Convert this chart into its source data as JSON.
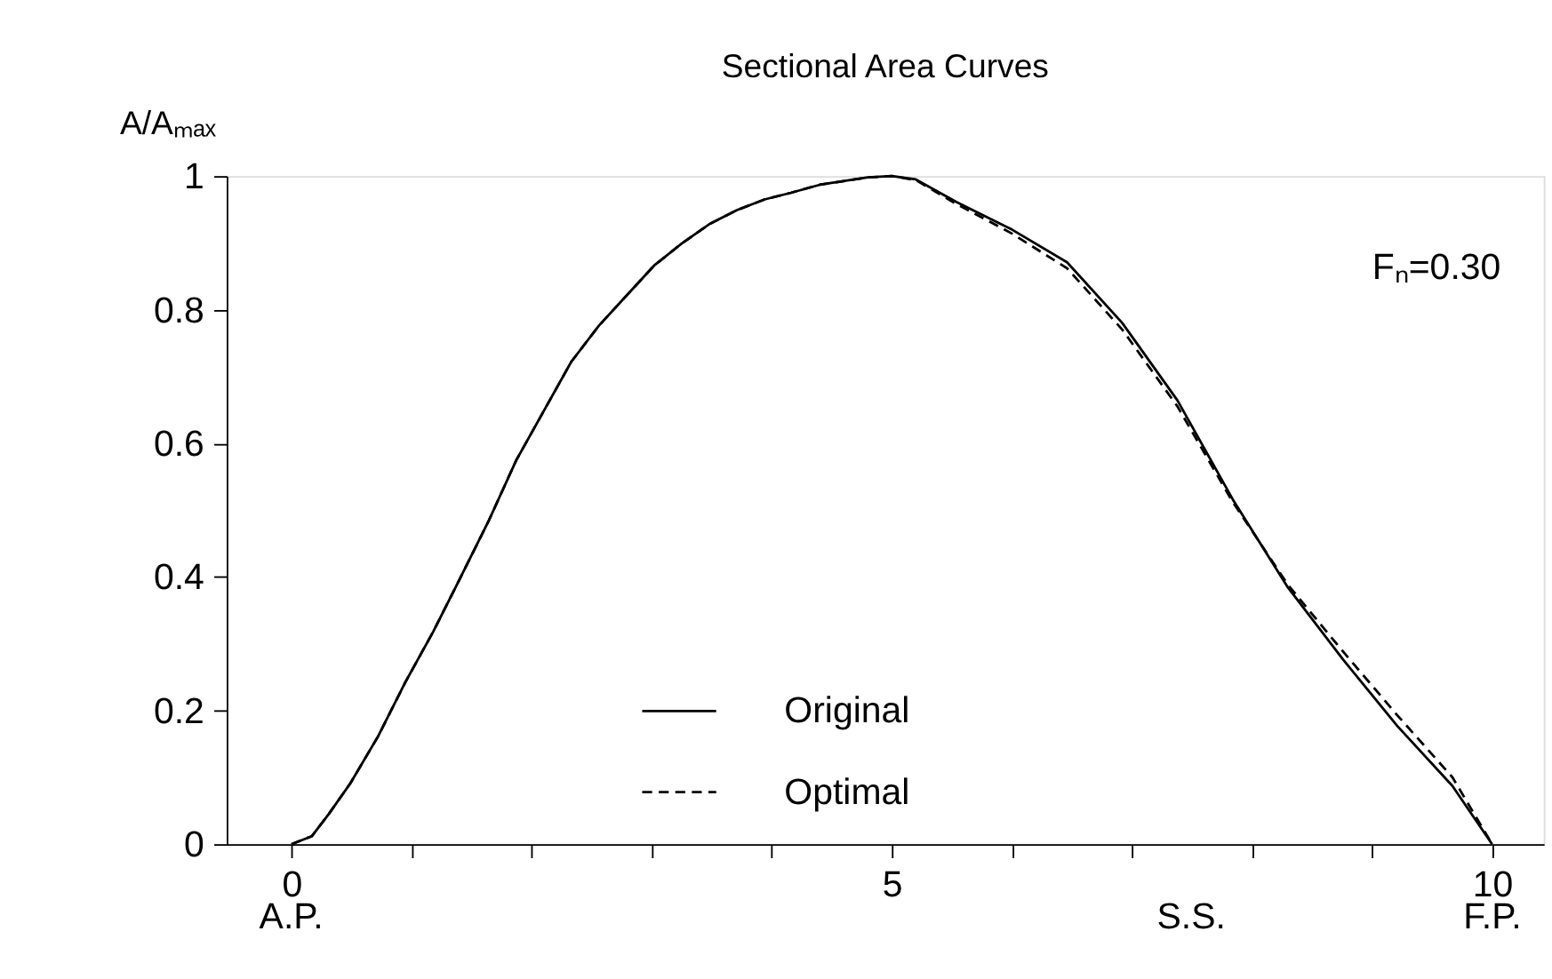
{
  "chart_data": {
    "type": "line",
    "title": "Sectional Area Curves",
    "ylabel": "A/Aₘₐₓ",
    "x": [
      0,
      0.17,
      0.31,
      0.49,
      0.72,
      0.95,
      1.18,
      1.41,
      1.64,
      1.87,
      2.1,
      2.33,
      2.56,
      2.79,
      3.02,
      3.25,
      3.48,
      3.71,
      3.94,
      4.16,
      4.4,
      4.8,
      5.0,
      5.2,
      5.54,
      6.0,
      6.46,
      6.92,
      7.38,
      7.84,
      8.3,
      8.76,
      9.21,
      9.67,
      10.0
    ],
    "series": [
      {
        "name": "Original",
        "color": "#000000",
        "line_style": "solid",
        "values": [
          0,
          0.012,
          0.045,
          0.091,
          0.161,
          0.243,
          0.318,
          0.4,
          0.483,
          0.574,
          0.648,
          0.722,
          0.776,
          0.821,
          0.866,
          0.899,
          0.928,
          0.949,
          0.965,
          0.975,
          0.987,
          0.998,
          1.0,
          0.995,
          0.961,
          0.92,
          0.871,
          0.78,
          0.664,
          0.516,
          0.384,
          0.276,
          0.177,
          0.087,
          0
        ]
      },
      {
        "name": "Optimal",
        "color": "#000000",
        "line_style": "dashed",
        "values": [
          0,
          0.012,
          0.045,
          0.091,
          0.161,
          0.243,
          0.318,
          0.4,
          0.483,
          0.574,
          0.648,
          0.722,
          0.776,
          0.821,
          0.866,
          0.899,
          0.928,
          0.949,
          0.965,
          0.975,
          0.987,
          0.998,
          1.0,
          0.994,
          0.958,
          0.914,
          0.862,
          0.77,
          0.655,
          0.512,
          0.388,
          0.288,
          0.193,
          0.1,
          0
        ]
      }
    ],
    "xlim": [
      -0.54,
      10.43
    ],
    "ylim": [
      0,
      1
    ],
    "xticks": [
      0,
      {
        "value": 1,
        "label": null
      },
      {
        "value": 2,
        "label": null
      },
      {
        "value": 3,
        "label": null
      },
      {
        "value": 4,
        "label": null
      },
      5,
      {
        "value": 6,
        "label": null
      },
      {
        "value": 7,
        "label": null
      },
      {
        "value": 8,
        "label": null
      },
      {
        "value": 9,
        "label": null
      },
      10
    ],
    "yticks": [
      0,
      0.2,
      0.4,
      0.6,
      0.8,
      1
    ],
    "annotations": [
      "Fₙ=0.30",
      "A.P.",
      "S.S.",
      "F.P."
    ],
    "legend": "bottom",
    "grid": false,
    "marker": "none"
  }
}
